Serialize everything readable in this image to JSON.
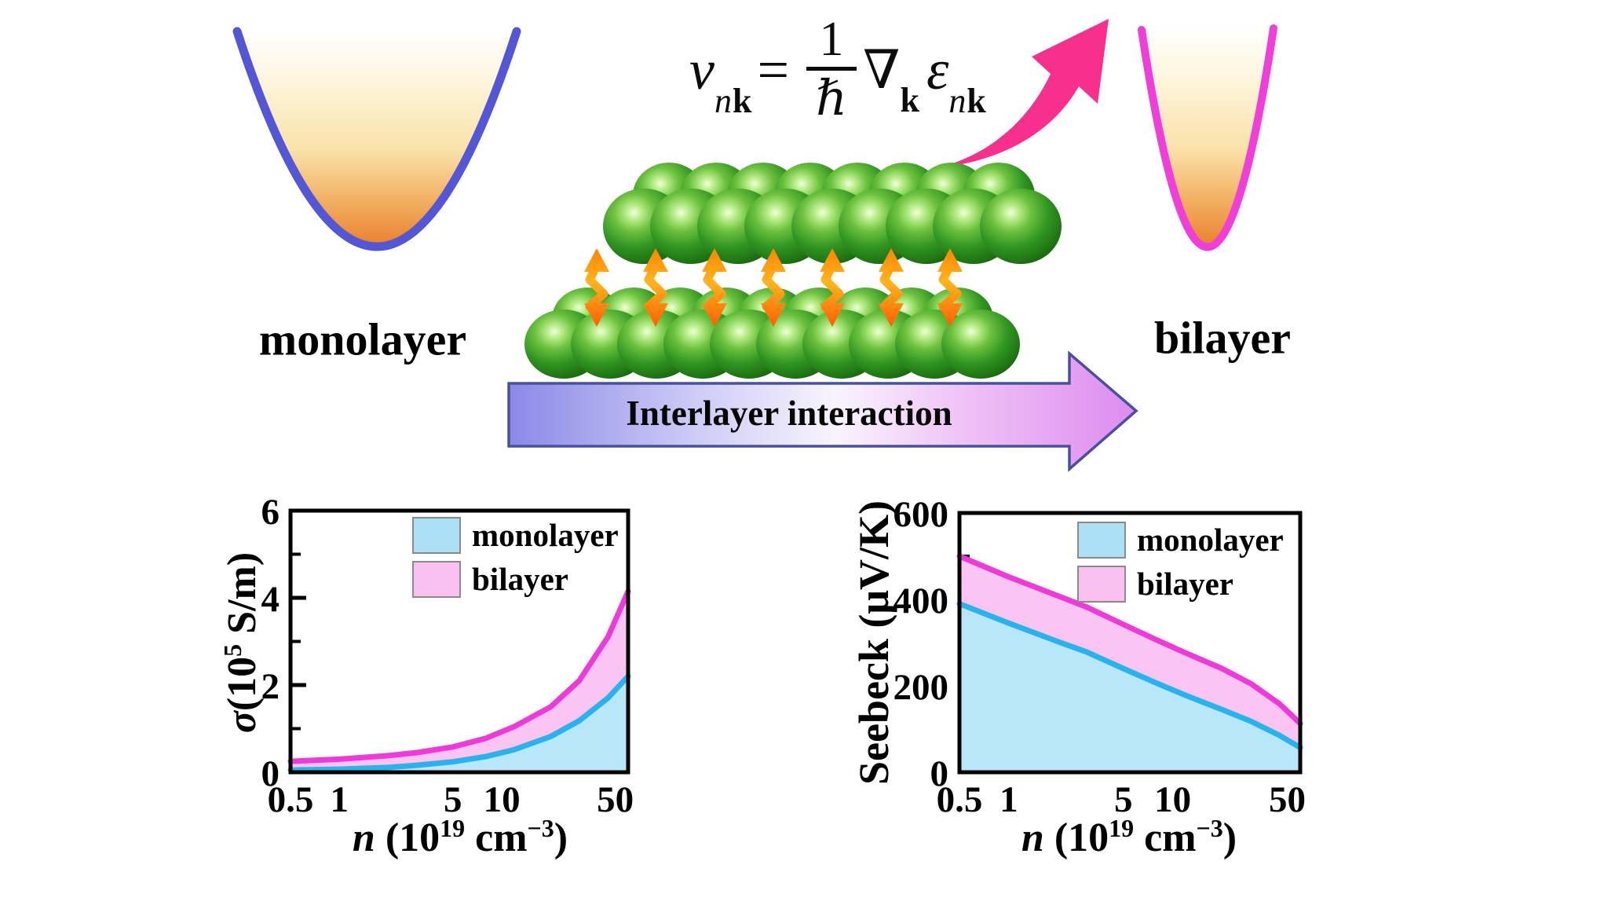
{
  "labels": {
    "monolayer": "monolayer",
    "bilayer": "bilayer",
    "interlayer": "Interlayer interaction"
  },
  "equation": {
    "v": "v",
    "sub_n": "n",
    "sub_k": "k",
    "equals": "=",
    "one": "1",
    "hbar": "ℏ",
    "nabla": "∇",
    "epsilon": "ε"
  },
  "legend": {
    "monolayer": "monolayer",
    "bilayer": "bilayer"
  },
  "axis": {
    "sigma_y": {
      "sigma": "σ",
      "p1": "(10",
      "sup1": "5",
      "p2": " S/m)"
    },
    "seebeck_y": "Seebeck (μV/K)",
    "x": {
      "p1": "n",
      "p2": " (10",
      "sup1": "19",
      "p3": " cm",
      "sup2": "−3",
      "p4": ")"
    }
  },
  "colors": {
    "monolayer_line": "#29B3ED",
    "monolayer_fill": "#B7E7F8",
    "bilayer_line": "#EE3AD9",
    "bilayer_fill": "#FAC4F3",
    "swatch_monolayer": "#ABE0F5",
    "swatch_bilayer": "#FAC0F0",
    "blue_parabola": "#5356D5",
    "pink_parabola": "#EF3ED9",
    "momentum_arrow_pink": "#F72F8D",
    "sphere_green": "#2F9421",
    "bond_arrow_orange": "#FF7A00",
    "interlayer_arrow_border": "#47519E"
  },
  "chart_data": [
    {
      "id": "sigma",
      "type": "area",
      "title": "",
      "xlabel": "n (10^19 cm^-3)",
      "ylabel": "σ(10^5 S/m)",
      "x_scale": "log",
      "xlim": [
        0.5,
        60
      ],
      "ylim": [
        0,
        6
      ],
      "xticks": [
        0.5,
        1,
        5,
        10,
        50
      ],
      "xtick_labels": [
        "0.5",
        "1",
        "5",
        "10",
        "50"
      ],
      "yticks": [
        0,
        2,
        4,
        6
      ],
      "ytick_labels": [
        "0",
        "2",
        "4",
        "6"
      ],
      "yticks_minor": [
        1,
        3,
        5
      ],
      "grid": false,
      "legend_position": "top-right-inside",
      "x": [
        0.5,
        1,
        2,
        3,
        5,
        8,
        12,
        20,
        30,
        45,
        60
      ],
      "series": [
        {
          "name": "monolayer",
          "values": [
            0.05,
            0.07,
            0.11,
            0.16,
            0.24,
            0.36,
            0.52,
            0.82,
            1.18,
            1.7,
            2.2
          ]
        },
        {
          "name": "bilayer",
          "values": [
            0.25,
            0.3,
            0.38,
            0.45,
            0.58,
            0.78,
            1.05,
            1.5,
            2.1,
            3.1,
            4.15
          ]
        }
      ]
    },
    {
      "id": "seebeck",
      "type": "area",
      "title": "",
      "xlabel": "n (10^19 cm^-3)",
      "ylabel": "Seebeck (μV/K)",
      "x_scale": "log",
      "xlim": [
        0.5,
        60
      ],
      "ylim": [
        0,
        600
      ],
      "xticks": [
        0.5,
        1,
        5,
        10,
        50
      ],
      "xtick_labels": [
        "0.5",
        "1",
        "5",
        "10",
        "50"
      ],
      "yticks": [
        0,
        200,
        400,
        600
      ],
      "ytick_labels": [
        "0",
        "200",
        "400",
        "600"
      ],
      "yticks_minor": [
        100,
        300,
        500
      ],
      "grid": false,
      "legend_position": "top-center-inside",
      "x": [
        0.5,
        1,
        2,
        3,
        5,
        8,
        12,
        20,
        30,
        45,
        60
      ],
      "series": [
        {
          "name": "monolayer",
          "values": [
            390,
            345,
            302,
            278,
            240,
            206,
            178,
            145,
            118,
            85,
            57
          ]
        },
        {
          "name": "bilayer",
          "values": [
            500,
            452,
            408,
            382,
            342,
            306,
            276,
            240,
            205,
            158,
            113
          ]
        }
      ]
    }
  ]
}
